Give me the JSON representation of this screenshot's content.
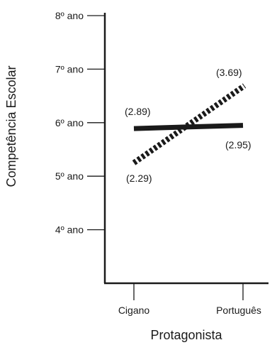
{
  "chart_data": {
    "type": "line",
    "title": "",
    "xlabel": "Protagonista",
    "ylabel": "Competência Escolar",
    "categories": [
      "Cigano",
      "Português"
    ],
    "y_ticks": [
      {
        "value": 4,
        "label": "4º ano"
      },
      {
        "value": 5,
        "label": "5º ano"
      },
      {
        "value": 6,
        "label": "6º ano"
      },
      {
        "value": 7,
        "label": "7º ano"
      },
      {
        "value": 8,
        "label": "8º ano"
      }
    ],
    "ylim": [
      3,
      8
    ],
    "grid": false,
    "series": [
      {
        "style": "solid",
        "values": [
          5.89,
          5.95
        ],
        "labels": [
          "(2.89)",
          "(2.95)"
        ],
        "color": "#1a1a1a"
      },
      {
        "style": "dashed",
        "values": [
          5.25,
          6.69
        ],
        "labels": [
          "(2.29)",
          "(3.69)"
        ],
        "color": "#1a1a1a"
      }
    ]
  }
}
